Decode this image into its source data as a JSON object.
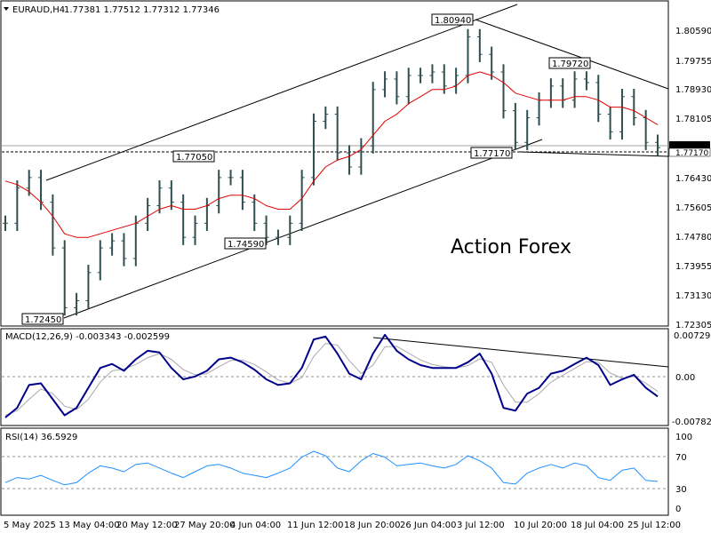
{
  "colors": {
    "background": "#ffffff",
    "price_bars": "#2f4f4f",
    "moving_average": "#e00000",
    "macd_line": "#00008b",
    "macd_signal": "#a9a9a9",
    "rsi_line": "#1e90ff",
    "trendline": "#000000",
    "watermark": "#b0b0b0",
    "grid_dotted": "#909090"
  },
  "chart_data": [
    {
      "type": "line",
      "panel": "price",
      "title": "EURAUD,H4",
      "ohlc_header": "1.77381 1.77512 1.77312 1.77346",
      "watermark": "Action Forex",
      "y_ticks": [
        "1.80590",
        "1.79755",
        "1.78930",
        "1.78105",
        "1.77346",
        "1.77170",
        "1.76430",
        "1.75605",
        "1.74780",
        "1.73955",
        "1.73130",
        "1.72305"
      ],
      "ylim": [
        1.72305,
        1.8142
      ],
      "current_price": 1.77346,
      "support_level": 1.7717,
      "annotations": [
        {
          "label": "1.80940",
          "x": "3 Jul 12:00",
          "y": 1.8094
        },
        {
          "label": "1.79720",
          "x": "18 Jul",
          "y": 1.7972
        },
        {
          "label": "1.77170",
          "x": "10 Jul",
          "y": 1.7717
        },
        {
          "label": "1.77050",
          "x": "27 May",
          "y": 1.7705
        },
        {
          "label": "1.74590",
          "x": "4 Jun",
          "y": 1.7459
        },
        {
          "label": "1.72450",
          "x": "13 May",
          "y": 1.7245
        }
      ],
      "series": [
        {
          "values": [
            1.752,
            1.762,
            1.765,
            1.758,
            1.745,
            1.728,
            1.73,
            1.738,
            1.745,
            1.747,
            1.742,
            1.752,
            1.757,
            1.762,
            1.758,
            1.748,
            1.752,
            1.757,
            1.765,
            1.765,
            1.758,
            1.752,
            1.748,
            1.748,
            1.752,
            1.765,
            1.781,
            1.783,
            1.772,
            1.768,
            1.774,
            1.79,
            1.793,
            1.788,
            1.794,
            1.794,
            1.795,
            1.791,
            1.794,
            1.805,
            1.8,
            1.795,
            1.784,
            1.775,
            1.782,
            1.787,
            1.791,
            1.787,
            1.793,
            1.792,
            1.783,
            1.778,
            1.788,
            1.782,
            1.775,
            1.7735
          ]
        },
        {
          "name": "",
          "values": [
            1.764,
            1.763,
            1.761,
            1.758,
            1.754,
            1.749,
            1.748,
            1.748,
            1.749,
            1.75,
            1.751,
            1.752,
            1.754,
            1.756,
            1.757,
            1.756,
            1.756,
            1.757,
            1.759,
            1.76,
            1.76,
            1.759,
            1.757,
            1.756,
            1.756,
            1.759,
            1.764,
            1.768,
            1.77,
            1.771,
            1.773,
            1.777,
            1.781,
            1.783,
            1.786,
            1.788,
            1.79,
            1.79,
            1.791,
            1.794,
            1.795,
            1.794,
            1.792,
            1.789,
            1.788,
            1.787,
            1.787,
            1.787,
            1.788,
            1.788,
            1.787,
            1.785,
            1.785,
            1.784,
            1.782,
            1.78
          ]
        }
      ]
    },
    {
      "type": "line",
      "panel": "macd",
      "title": "MACD(12,26,9) -0.003343 -0.002599",
      "y_ticks": [
        "0.007291",
        "0.00",
        "-0.00782"
      ],
      "ylim": [
        -0.00782,
        0.007291
      ],
      "series": [
        {
          "values": [
            -0.0072,
            -0.0055,
            -0.0015,
            -0.0012,
            -0.004,
            -0.0068,
            -0.0055,
            -0.002,
            0.0015,
            0.0022,
            0.001,
            0.003,
            0.0045,
            0.0042,
            0.0015,
            -0.0005,
            0.0,
            0.001,
            0.003,
            0.0033,
            0.0025,
            0.0012,
            -0.0005,
            -0.0015,
            -0.0012,
            0.0015,
            0.0065,
            0.007,
            0.004,
            0.0005,
            -0.0005,
            0.004,
            0.0073,
            0.0045,
            0.003,
            0.002,
            0.0015,
            0.0015,
            0.0015,
            0.0025,
            0.004,
            0.0005,
            -0.0055,
            -0.006,
            -0.003,
            -0.002,
            0.0005,
            0.001,
            0.0022,
            0.0033,
            0.002,
            -0.0015,
            -0.0005,
            0.0003,
            -0.002,
            -0.0035
          ]
        },
        {
          "values": [
            -0.0068,
            -0.006,
            -0.004,
            -0.0022,
            -0.003,
            -0.0052,
            -0.0058,
            -0.004,
            -0.001,
            0.001,
            0.0013,
            0.0021,
            0.0033,
            0.004,
            0.003,
            0.0012,
            0.0003,
            0.0005,
            0.0017,
            0.0028,
            0.0029,
            0.0021,
            0.0008,
            -0.0006,
            -0.0012,
            -0.0002,
            0.0035,
            0.0058,
            0.0055,
            0.0028,
            0.0005,
            0.002,
            0.0052,
            0.0053,
            0.0041,
            0.0029,
            0.0021,
            0.0017,
            0.0015,
            0.0019,
            0.0031,
            0.0025,
            -0.0015,
            -0.0045,
            -0.0045,
            -0.003,
            -0.001,
            0.0002,
            0.0014,
            0.0026,
            0.0025,
            0.0006,
            -0.0003,
            0.0,
            -0.0012,
            -0.0026
          ]
        }
      ],
      "trendline": true
    },
    {
      "type": "line",
      "panel": "rsi",
      "title": "RSI(14) 36.5929",
      "y_ticks": [
        "100",
        "70",
        "30",
        "0"
      ],
      "ylim": [
        0,
        100
      ],
      "series": [
        {
          "values": [
            35,
            42,
            40,
            45,
            38,
            32,
            35,
            48,
            58,
            55,
            50,
            60,
            62,
            55,
            48,
            42,
            50,
            58,
            60,
            55,
            48,
            45,
            42,
            48,
            55,
            70,
            78,
            72,
            55,
            50,
            65,
            75,
            70,
            58,
            60,
            62,
            58,
            55,
            60,
            72,
            65,
            55,
            35,
            33,
            48,
            55,
            60,
            55,
            62,
            58,
            42,
            38,
            52,
            55,
            38,
            36.6
          ]
        }
      ]
    }
  ],
  "x_axis": {
    "labels": [
      "5 May 2025",
      "13 May 04:00",
      "20 May 12:00",
      "27 May 20:00",
      "4 Jun 04:00",
      "11 Jun 12:00",
      "18 Jun 20:00",
      "26 Jun 04:00",
      "3 Jul 12:00",
      "10 Jul 20:00",
      "18 Jul 04:00",
      "25 Jul 12:00"
    ]
  }
}
